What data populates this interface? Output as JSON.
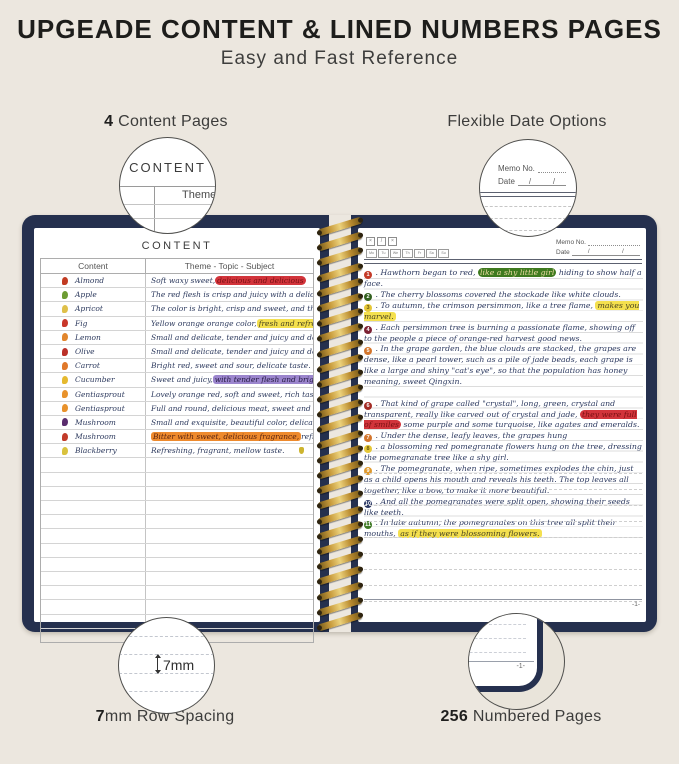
{
  "colors": {
    "background": "#ece7df",
    "cover_navy": "#25304e",
    "spiral_gold": "#c89b3c",
    "ink_navy": "#2d3a60",
    "highlight_red": "#d2343b",
    "highlight_yellow": "#f4e04e",
    "highlight_purple": "#9b85cd",
    "highlight_orange": "#ee8a2d",
    "highlight_green": "#3e7a1f"
  },
  "header": {
    "title": "UPGEADE CONTENT & LINED NUMBERS PAGES",
    "subtitle": "Easy and Fast Reference"
  },
  "callouts": {
    "top_left": {
      "bold": "4",
      "rest": " Content Pages"
    },
    "top_right": {
      "bold": "",
      "rest": "Flexible Date Options"
    },
    "bottom_left": {
      "bold": "7",
      "rest": "mm Row Spacing"
    },
    "bottom_right": {
      "bold": "256",
      "rest": " Numbered Pages"
    }
  },
  "magnifier_content": {
    "heading": "CONTENT",
    "partial_header": "Theme"
  },
  "magnifier_date": {
    "memo_label": "Memo No.",
    "date_label": "Date",
    "slash1": "/",
    "slash2": "/"
  },
  "magnifier_spacing": {
    "value": "7mm"
  },
  "magnifier_page": {
    "page_number": "-1-"
  },
  "spiral": {
    "coil_count": 27
  },
  "left_page": {
    "title": "CONTENT",
    "col1_header": "Content",
    "col2_header": "Theme - Topic - Subject",
    "empty_row_count": 13,
    "rows": [
      {
        "icon": "chili-icon",
        "icon_color": "#c23b22",
        "name": "Almond",
        "desc": [
          {
            "t": "Soft waxy sweet, "
          },
          {
            "t": "delicious and delicious",
            "h": "red"
          }
        ]
      },
      {
        "icon": "cucumber-icon",
        "icon_color": "#6d9c33",
        "name": "Apple",
        "desc": [
          {
            "t": "The red flesh is crisp and juicy with a delicate taste"
          }
        ]
      },
      {
        "icon": "pear-icon",
        "icon_color": "#dfc04a",
        "name": "Apricot",
        "desc": [
          {
            "t": "The color is bright, crisp and sweet, and the taste is rich"
          }
        ]
      },
      {
        "icon": "watermelon-icon",
        "icon_color": "#c9372a",
        "name": "Fig",
        "desc": [
          {
            "t": "Yellow orange orange color, "
          },
          {
            "t": "fresh and refreshing.",
            "h": "yellow"
          }
        ]
      },
      {
        "icon": "orange-icon",
        "icon_color": "#e2862c",
        "name": "Lemon",
        "desc": [
          {
            "t": "Small and delicate, tender and juicy and delicious."
          }
        ]
      },
      {
        "icon": "berry-icon",
        "icon_color": "#bb3028",
        "name": "Olive",
        "desc": [
          {
            "t": "Small and delicate, tender and juicy and delicious."
          }
        ]
      },
      {
        "icon": "peach-icon",
        "icon_color": "#e0782a",
        "name": "Carrot",
        "desc": [
          {
            "t": "Bright red, sweet and sour, delicate taste."
          }
        ]
      },
      {
        "icon": "banana-icon",
        "icon_color": "#e5b92f",
        "name": "Cucumber",
        "desc": [
          {
            "t": "Sweet and juicy, "
          },
          {
            "t": "with tender flesh and bright colours.",
            "h": "purple"
          }
        ]
      },
      {
        "icon": "orange-icon",
        "icon_color": "#e8922c",
        "name": "Gentiasprout",
        "desc": [
          {
            "t": "Lovely orange red, soft and sweet, rich taste."
          }
        ]
      },
      {
        "icon": "orange-slice-icon",
        "icon_color": "#e8922c",
        "name": "Gentiasprout",
        "desc": [
          {
            "t": "Full and round, delicious meat, sweet and delicious."
          }
        ]
      },
      {
        "icon": "eggplant-icon",
        "icon_color": "#5a2d6e",
        "name": "Mushroom",
        "desc": [
          {
            "t": "Small and exquisite, beautiful color, delicate taste."
          }
        ]
      },
      {
        "icon": "apple-icon",
        "icon_color": "#c23b2a",
        "name": "Mushroom",
        "desc": [
          {
            "t": "Bitter with sweet, delicious fragrance,",
            "h": "orange"
          },
          {
            "t": " refreshing taste."
          }
        ]
      },
      {
        "icon": "lemon-icon",
        "icon_color": "#d9c23e",
        "name": "Blackberry",
        "desc": [
          {
            "t": "Refreshing, fragrant, mellow taste."
          }
        ],
        "trail_icon": "wheat-icon",
        "trail_color": "#cdb42e"
      }
    ]
  },
  "right_page": {
    "checkbox_icons": [
      "×",
      "/",
      "×"
    ],
    "day_labels": [
      "Mo",
      "Tu",
      "We",
      "Th",
      "Fr",
      "Sa",
      "Su"
    ],
    "memo_label": "Memo No.",
    "date_label": "Date",
    "slash1": "/",
    "slash2": "/",
    "empty_line_count": 9,
    "page_number": "-1-",
    "entries": [
      {
        "n": "1",
        "c": "#c43a28",
        "segs": [
          {
            "t": "Hawthorn began to red, "
          },
          {
            "t": "like a shy little girl",
            "h": "green"
          },
          {
            "t": " hiding to show half a face."
          }
        ]
      },
      {
        "n": "2",
        "c": "#33611f",
        "segs": [
          {
            "t": "The cherry blossoms covered the stockade like white clouds."
          }
        ]
      },
      {
        "n": "3",
        "c": "#e5c737",
        "light": true,
        "segs": [
          {
            "t": "To autumn, the crimson persimmon, like a tree flame, "
          },
          {
            "t": "makes you marvel.",
            "h": "yellow"
          }
        ]
      },
      {
        "n": "4",
        "c": "#7c2133",
        "segs": [
          {
            "t": "Each persimmon tree is burning a passionate flame, showing off to the people a piece of orange-red harvest good news."
          }
        ]
      },
      {
        "n": "5",
        "c": "#d3752c",
        "segs": [
          {
            "t": "In the grape garden, the blue clouds are stacked, the grapes are dense, like a pearl tower, such as a pile of jade beads, each grape is like a large and shiny \"cat's eye\", so that the population has honey meaning, sweet Qingxin."
          }
        ]
      },
      {
        "n": "6",
        "c": "#a32b24",
        "gap_before": true,
        "segs": [
          {
            "t": "That kind of grape called \"crystal\", long, green, crystal and transparent, really like carved out of crystal and jade, "
          },
          {
            "t": "they were full of smiles",
            "h": "red"
          },
          {
            "t": " some purple and some turquoise, like agates and emeralds."
          }
        ]
      },
      {
        "n": "7",
        "c": "#d3752c",
        "segs": [
          {
            "t": "Under the dense, leafy leaves, the grapes hung"
          }
        ]
      },
      {
        "n": "8",
        "c": "#e5c737",
        "light": true,
        "segs": [
          {
            "t": "a blossoming red pomegranate flowers hung on the tree, dressing the pomegranate tree like a shy girl."
          }
        ]
      },
      {
        "n": "9",
        "c": "#df9a2f",
        "segs": [
          {
            "t": "The pomegranate, when ripe, sometimes explodes the chin, just as a child opens his mouth and reveals his teeth. The top leaves all together, like a bow, to make it more beautiful."
          }
        ]
      },
      {
        "n": "10",
        "c": "#2d3a66",
        "segs": [
          {
            "t": "And all the pomegranates were split open, showing their seeds like teeth."
          }
        ]
      },
      {
        "n": "11",
        "c": "#407a26",
        "segs": [
          {
            "t": "In late autumn, the pomegranates on this tree all split their mouths, "
          },
          {
            "t": "as if they were blossoming flowers.",
            "h": "yellow"
          }
        ]
      }
    ]
  }
}
